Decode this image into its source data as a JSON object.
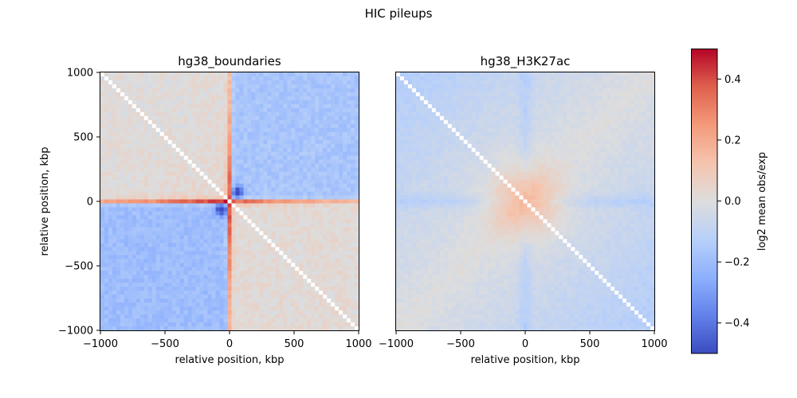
{
  "chart_data": {
    "type": "heatmap",
    "title": "HIC pileups",
    "panels": [
      {
        "name": "hg38_boundaries",
        "pattern": "boundary",
        "xlabel": "relative position, kbp",
        "ylabel": "relative position, kbp",
        "xlim": [
          -1000,
          1000
        ],
        "ylim": [
          -1000,
          1000
        ],
        "xticks": [
          "−1000",
          "−500",
          "0",
          "500",
          "1000"
        ],
        "yticks": [
          "1000",
          "500",
          "0",
          "−500",
          "−1000"
        ]
      },
      {
        "name": "hg38_H3K27ac",
        "pattern": "h3k27ac",
        "xlabel": "relative position, kbp",
        "ylabel": "",
        "xlim": [
          -1000,
          1000
        ],
        "ylim": [
          -1000,
          1000
        ],
        "xticks": [
          "−1000",
          "−500",
          "0",
          "500",
          "1000"
        ],
        "yticks": []
      }
    ],
    "colorbar": {
      "label": "log2 mean obs/exp",
      "colormap": "coolwarm",
      "vmin": -0.5,
      "vmax": 0.5,
      "ticks": [
        0.4,
        0.2,
        0.0,
        -0.2,
        -0.4
      ],
      "tick_labels": [
        "0.4",
        "0.2",
        "0.0",
        "−0.2",
        "−0.4"
      ]
    }
  }
}
